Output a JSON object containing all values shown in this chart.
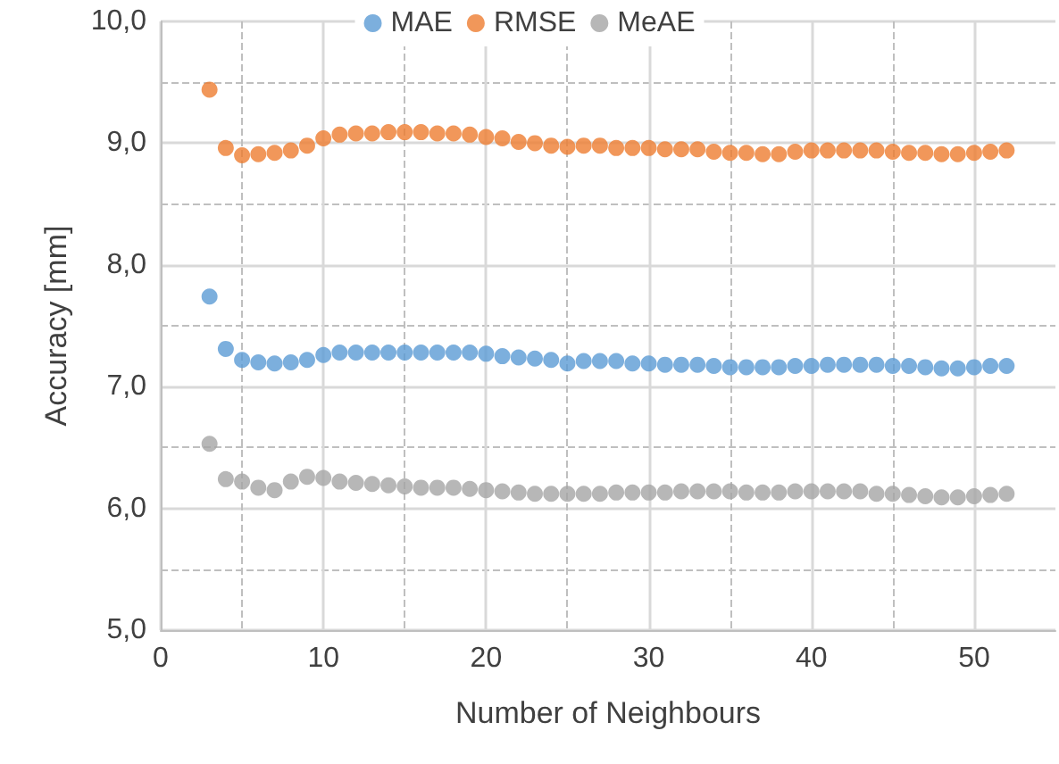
{
  "chart_data": {
    "type": "scatter",
    "xlabel": "Number of Neighbours",
    "ylabel": "Accuracy [mm]",
    "x": [
      3,
      4,
      5,
      6,
      7,
      8,
      9,
      10,
      11,
      12,
      13,
      14,
      15,
      16,
      17,
      18,
      19,
      20,
      21,
      22,
      23,
      24,
      25,
      26,
      27,
      28,
      29,
      30,
      31,
      32,
      33,
      34,
      35,
      36,
      37,
      38,
      39,
      40,
      41,
      42,
      43,
      44,
      45,
      46,
      47,
      48,
      49,
      50,
      51,
      52
    ],
    "series": [
      {
        "name": "MAE",
        "color": "#5b9bd5",
        "values": [
          7.74,
          7.31,
          7.22,
          7.2,
          7.19,
          7.2,
          7.22,
          7.26,
          7.28,
          7.28,
          7.28,
          7.28,
          7.28,
          7.28,
          7.28,
          7.28,
          7.28,
          7.27,
          7.25,
          7.24,
          7.23,
          7.22,
          7.19,
          7.21,
          7.21,
          7.21,
          7.19,
          7.19,
          7.18,
          7.18,
          7.18,
          7.17,
          7.16,
          7.16,
          7.16,
          7.16,
          7.17,
          7.17,
          7.18,
          7.18,
          7.18,
          7.18,
          7.17,
          7.17,
          7.16,
          7.15,
          7.15,
          7.16,
          7.17,
          7.17
        ]
      },
      {
        "name": "RMSE",
        "color": "#ed7d31",
        "values": [
          9.44,
          8.96,
          8.9,
          8.91,
          8.92,
          8.94,
          8.98,
          9.04,
          9.07,
          9.08,
          9.08,
          9.09,
          9.09,
          9.09,
          9.08,
          9.08,
          9.07,
          9.05,
          9.04,
          9.01,
          9.0,
          8.98,
          8.97,
          8.98,
          8.98,
          8.96,
          8.96,
          8.96,
          8.95,
          8.95,
          8.95,
          8.93,
          8.92,
          8.92,
          8.91,
          8.91,
          8.93,
          8.94,
          8.94,
          8.94,
          8.94,
          8.94,
          8.93,
          8.92,
          8.92,
          8.91,
          8.91,
          8.92,
          8.93,
          8.94
        ]
      },
      {
        "name": "MeAE",
        "color": "#a5a5a5",
        "values": [
          6.53,
          6.24,
          6.22,
          6.17,
          6.15,
          6.22,
          6.26,
          6.25,
          6.22,
          6.21,
          6.2,
          6.19,
          6.18,
          6.17,
          6.17,
          6.17,
          6.16,
          6.15,
          6.14,
          6.13,
          6.12,
          6.12,
          6.12,
          6.12,
          6.12,
          6.13,
          6.13,
          6.13,
          6.13,
          6.14,
          6.14,
          6.14,
          6.14,
          6.13,
          6.13,
          6.13,
          6.14,
          6.14,
          6.14,
          6.14,
          6.14,
          6.12,
          6.12,
          6.11,
          6.1,
          6.09,
          6.09,
          6.1,
          6.11,
          6.12
        ]
      }
    ],
    "xlim": [
      0,
      55
    ],
    "xticks": [
      0,
      10,
      20,
      30,
      40,
      50
    ],
    "ylim": [
      5,
      10
    ],
    "yticks": [
      {
        "value": 5,
        "label": "5,0"
      },
      {
        "value": 6,
        "label": "6,0"
      },
      {
        "value": 7,
        "label": "7,0"
      },
      {
        "value": 8,
        "label": "8,0"
      },
      {
        "value": 9,
        "label": "9,0"
      },
      {
        "value": 10,
        "label": "10,0"
      }
    ],
    "grid": true,
    "legend": "top",
    "marker": "circle"
  }
}
